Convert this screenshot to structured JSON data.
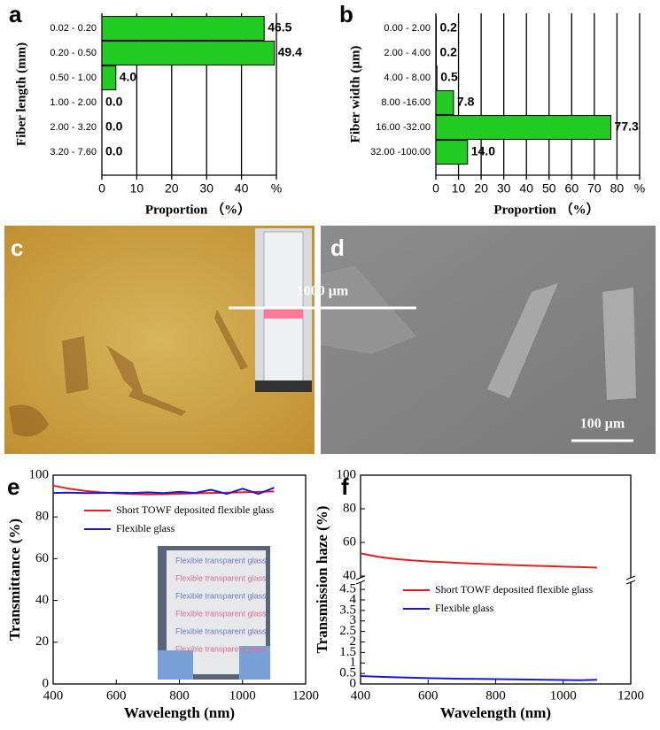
{
  "chart_data": [
    {
      "type": "hbar",
      "panel": "a",
      "categories": [
        "0.02 - 0.20",
        "0.20 - 0.50",
        "0.50 - 1.00",
        "1.00 - 2.00",
        "2.00 - 3.20",
        "3.20 - 7.60"
      ],
      "values": [
        46.5,
        49.4,
        4.0,
        0.0,
        0.0,
        0.0
      ],
      "value_labels": [
        "46.5",
        "49.4",
        "4.0",
        "0.0",
        "0.0",
        "0.0"
      ],
      "color": "#22cc22",
      "xlim": [
        0,
        50
      ],
      "xticks": [
        0,
        10,
        20,
        30,
        40,
        {
          "value": 50,
          "label": "%"
        }
      ],
      "xlabel": "Proportion （%）",
      "ylabel": "Fiber length (mm)",
      "grid": true
    },
    {
      "type": "hbar",
      "panel": "b",
      "categories": [
        "0.00 - 2.00",
        "2.00 - 4.00",
        "4.00 - 8.00",
        "8.00 -16.00",
        "16.00 -32.00",
        "32.00 -100.00"
      ],
      "values": [
        0.2,
        0.2,
        0.5,
        7.8,
        77.3,
        14.0
      ],
      "value_labels": [
        "0.2",
        "0.2",
        "0.5",
        "7.8",
        "77.3",
        "14.0"
      ],
      "color": "#22cc22",
      "xlim": [
        0,
        90
      ],
      "xticks": [
        0,
        10,
        20,
        30,
        40,
        50,
        60,
        70,
        80,
        {
          "value": 90,
          "label": "%"
        }
      ],
      "xlabel": "Proportion （%）",
      "ylabel": "Fiber width (μm)",
      "grid": true
    },
    {
      "type": "image",
      "panel": "c",
      "scale_bar": "1000 μm"
    },
    {
      "type": "image",
      "panel": "d",
      "scale_bar": "100 μm"
    },
    {
      "type": "line",
      "panel": "e",
      "x": [
        400,
        450,
        500,
        550,
        600,
        650,
        700,
        750,
        800,
        850,
        900,
        950,
        1000,
        1050,
        1100
      ],
      "series": [
        {
          "name": "Short TOWF deposited flexible glass",
          "color": "#e02020",
          "values": [
            95,
            93.5,
            92.5,
            91.8,
            91.3,
            91,
            90.8,
            90.9,
            91.1,
            91.3,
            91.5,
            91.6,
            91.8,
            92,
            92.2
          ]
        },
        {
          "name": "Flexible glass",
          "color": "#1a1acc",
          "values": [
            91.5,
            91.6,
            91.4,
            91.5,
            91.6,
            91.5,
            91.8,
            91.4,
            92,
            91.5,
            93,
            91,
            93.5,
            91,
            94
          ]
        }
      ],
      "xlim": [
        400,
        1200
      ],
      "xticks": [
        400,
        600,
        800,
        1000,
        1200
      ],
      "ylim": [
        0,
        100
      ],
      "yticks": [
        0,
        20,
        40,
        60,
        80,
        100
      ],
      "xlabel": "Wavelength (nm)",
      "ylabel": "Transmittance (%)",
      "legend": "upper left",
      "inset_text": "Flexible transparent glass"
    },
    {
      "type": "line",
      "panel": "f",
      "broken_y": true,
      "x": [
        400,
        450,
        500,
        550,
        600,
        650,
        700,
        750,
        800,
        850,
        900,
        950,
        1000,
        1050,
        1100
      ],
      "series": [
        {
          "name": "Short TOWF deposited flexible glass",
          "color": "#e02020",
          "values": [
            53.5,
            51.5,
            50.2,
            49.3,
            48.7,
            48.2,
            47.7,
            47.3,
            46.9,
            46.5,
            46.2,
            45.9,
            45.6,
            45.3,
            45.0
          ]
        },
        {
          "name": "Flexible glass",
          "color": "#1a1acc",
          "values": [
            0.38,
            0.35,
            0.32,
            0.3,
            0.28,
            0.26,
            0.25,
            0.24,
            0.23,
            0.22,
            0.21,
            0.2,
            0.19,
            0.18,
            0.2
          ]
        }
      ],
      "xlim": [
        400,
        1200
      ],
      "xticks": [
        400,
        600,
        800,
        1000,
        1200
      ],
      "ylim": [
        0,
        4.8
      ],
      "yticks": [
        0,
        0.5,
        1,
        1.5,
        2,
        2.5,
        3,
        3.5,
        4,
        4.5
      ],
      "ylim_upper": [
        40,
        100
      ],
      "yticks_upper": [
        40,
        60,
        80,
        100
      ],
      "xlabel": "Wavelength (nm)",
      "ylabel": "Transmission haze (%)",
      "legend": "middle left"
    }
  ]
}
